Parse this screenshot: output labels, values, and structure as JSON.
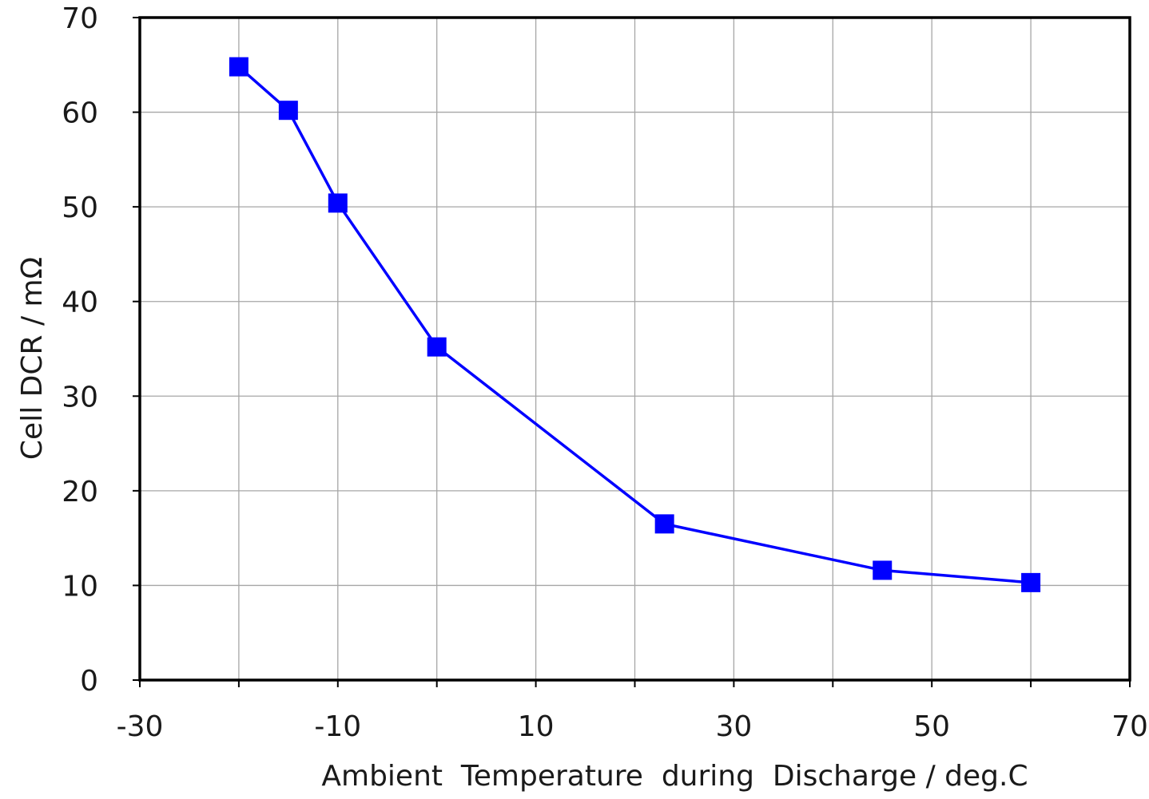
{
  "chart_data": {
    "type": "line",
    "title": "",
    "xlabel": "Ambient  Temperature  during  Discharge / deg.C",
    "ylabel": "Cell DCR / mΩ",
    "xlim": [
      -30,
      70
    ],
    "ylim": [
      0,
      70
    ],
    "x_ticks": [
      -30,
      -10,
      10,
      30,
      50,
      70
    ],
    "x_minor_ticks": [
      -20,
      0,
      20,
      40,
      60
    ],
    "y_ticks": [
      0,
      10,
      20,
      30,
      40,
      50,
      60,
      70
    ],
    "grid": true,
    "legend": "none",
    "series": [
      {
        "color": "#0000ff",
        "marker": "square",
        "x": [
          -20,
          -15,
          -10,
          0,
          23,
          45,
          60
        ],
        "y": [
          64.8,
          60.2,
          50.4,
          35.2,
          16.5,
          11.6,
          10.3
        ]
      }
    ]
  }
}
